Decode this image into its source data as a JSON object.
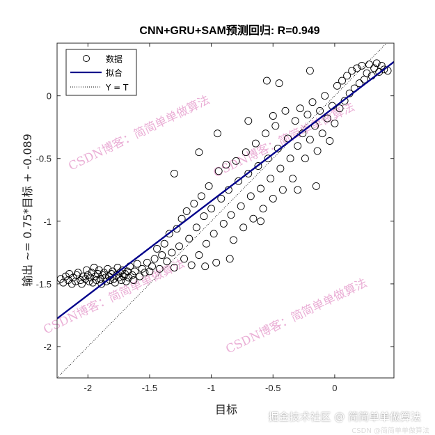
{
  "chart_data": {
    "type": "scatter",
    "title": "CNN+GRU+SAM预测回归: R=0.949",
    "xlabel": "目标",
    "ylabel": "输出 ~= 0.75*目标 + -0.089",
    "xlim": [
      -2.25,
      0.48
    ],
    "ylim": [
      -2.25,
      0.42
    ],
    "xticks": [
      -2,
      -1.5,
      -1,
      -0.5,
      0
    ],
    "xtick_labels": [
      "-2",
      "-1.5",
      "-1",
      "-0.5",
      "0"
    ],
    "yticks": [
      -2,
      -1.5,
      -1,
      -0.5,
      0
    ],
    "ytick_labels": [
      "-2",
      "-1.5",
      "-1",
      "-0.5",
      "0"
    ],
    "grid": false,
    "legend": {
      "placement": "top-left",
      "entries": [
        "数据",
        "拟合",
        "Y = T"
      ]
    },
    "fit": {
      "slope": 0.75,
      "intercept": -0.089,
      "color": "#00008b"
    },
    "identity_line": {
      "style": "dotted",
      "color": "#000000"
    },
    "series": [
      {
        "name": "数据",
        "marker": "open-circle",
        "points": [
          [
            -2.22,
            -1.46
          ],
          [
            -2.2,
            -1.49
          ],
          [
            -2.18,
            -1.44
          ],
          [
            -2.16,
            -1.47
          ],
          [
            -2.15,
            -1.42
          ],
          [
            -2.13,
            -1.5
          ],
          [
            -2.12,
            -1.45
          ],
          [
            -2.1,
            -1.48
          ],
          [
            -2.09,
            -1.43
          ],
          [
            -2.08,
            -1.41
          ],
          [
            -2.06,
            -1.47
          ],
          [
            -2.05,
            -1.5
          ],
          [
            -2.04,
            -1.44
          ],
          [
            -2.02,
            -1.46
          ],
          [
            -2.01,
            -1.39
          ],
          [
            -2.0,
            -1.43
          ],
          [
            -1.99,
            -1.48
          ],
          [
            -1.98,
            -1.45
          ],
          [
            -1.97,
            -1.41
          ],
          [
            -1.96,
            -1.49
          ],
          [
            -1.95,
            -1.37
          ],
          [
            -1.94,
            -1.44
          ],
          [
            -1.93,
            -1.47
          ],
          [
            -1.92,
            -1.42
          ],
          [
            -1.91,
            -1.39
          ],
          [
            -1.9,
            -1.46
          ],
          [
            -1.89,
            -1.5
          ],
          [
            -1.88,
            -1.43
          ],
          [
            -1.87,
            -1.41
          ],
          [
            -1.86,
            -1.45
          ],
          [
            -1.85,
            -1.48
          ],
          [
            -1.84,
            -1.38
          ],
          [
            -1.83,
            -1.44
          ],
          [
            -1.82,
            -1.47
          ],
          [
            -1.81,
            -1.42
          ],
          [
            -1.8,
            -1.4
          ],
          [
            -1.79,
            -1.46
          ],
          [
            -1.78,
            -1.49
          ],
          [
            -1.77,
            -1.43
          ],
          [
            -1.76,
            -1.37
          ],
          [
            -1.75,
            -1.45
          ],
          [
            -1.74,
            -1.41
          ],
          [
            -1.73,
            -1.47
          ],
          [
            -1.72,
            -1.39
          ],
          [
            -1.71,
            -1.44
          ],
          [
            -1.7,
            -1.42
          ],
          [
            -1.69,
            -1.48
          ],
          [
            -1.68,
            -1.4
          ],
          [
            -1.67,
            -1.45
          ],
          [
            -1.66,
            -1.36
          ],
          [
            -1.64,
            -1.43
          ],
          [
            -1.63,
            -1.47
          ],
          [
            -1.62,
            -1.4
          ],
          [
            -1.6,
            -1.34
          ],
          [
            -1.58,
            -1.44
          ],
          [
            -1.56,
            -1.38
          ],
          [
            -1.54,
            -1.41
          ],
          [
            -1.52,
            -1.33
          ],
          [
            -1.5,
            -1.4
          ],
          [
            -1.48,
            -1.36
          ],
          [
            -1.46,
            -1.3
          ],
          [
            -1.44,
            -1.22
          ],
          [
            -1.42,
            -1.38
          ],
          [
            -1.4,
            -1.27
          ],
          [
            -1.38,
            -1.18
          ],
          [
            -1.36,
            -1.32
          ],
          [
            -1.34,
            -1.1
          ],
          [
            -1.32,
            -1.25
          ],
          [
            -1.3,
            -1.37
          ],
          [
            -1.28,
            -1.06
          ],
          [
            -1.26,
            -1.2
          ],
          [
            -1.24,
            -0.98
          ],
          [
            -1.22,
            -1.3
          ],
          [
            -1.2,
            -0.92
          ],
          [
            -1.18,
            -1.14
          ],
          [
            -1.16,
            -1.35
          ],
          [
            -1.14,
            -0.86
          ],
          [
            -1.12,
            -1.05
          ],
          [
            -1.1,
            -1.27
          ],
          [
            -1.08,
            -0.8
          ],
          [
            -1.06,
            -0.96
          ],
          [
            -1.04,
            -1.18
          ],
          [
            -1.02,
            -0.72
          ],
          [
            -1.0,
            -0.9
          ],
          [
            -0.98,
            -1.1
          ],
          [
            -0.96,
            -1.33
          ],
          [
            -0.94,
            -0.6
          ],
          [
            -0.92,
            -0.82
          ],
          [
            -0.9,
            -1.02
          ],
          [
            -0.88,
            -0.55
          ],
          [
            -0.86,
            -0.75
          ],
          [
            -0.84,
            -0.95
          ],
          [
            -0.82,
            -1.15
          ],
          [
            -0.8,
            -0.52
          ],
          [
            -0.78,
            -0.68
          ],
          [
            -0.76,
            -0.88
          ],
          [
            -0.74,
            -1.05
          ],
          [
            -0.72,
            -0.45
          ],
          [
            -0.7,
            -0.62
          ],
          [
            -0.68,
            -0.8
          ],
          [
            -0.66,
            -0.98
          ],
          [
            -0.64,
            -0.38
          ],
          [
            -0.62,
            -0.56
          ],
          [
            -0.6,
            -0.74
          ],
          [
            -0.58,
            -0.9
          ],
          [
            -0.56,
            -0.3
          ],
          [
            -0.54,
            -0.5
          ],
          [
            -0.52,
            -0.66
          ],
          [
            -0.5,
            -0.82
          ],
          [
            -0.48,
            -0.24
          ],
          [
            -0.46,
            -0.42
          ],
          [
            -0.44,
            -0.58
          ],
          [
            -0.42,
            -0.75
          ],
          [
            -0.4,
            -0.12
          ],
          [
            -0.38,
            -0.34
          ],
          [
            -0.36,
            -0.5
          ],
          [
            -0.34,
            -0.66
          ],
          [
            -0.32,
            -0.2
          ],
          [
            -0.3,
            -0.4
          ],
          [
            -0.28,
            -0.1
          ],
          [
            -0.26,
            -0.3
          ],
          [
            -0.24,
            -0.5
          ],
          [
            -0.22,
            -0.15
          ],
          [
            -0.2,
            -0.35
          ],
          [
            -0.18,
            -0.05
          ],
          [
            -0.16,
            -0.24
          ],
          [
            -0.14,
            -0.44
          ],
          [
            -0.12,
            -0.12
          ],
          [
            -0.1,
            -0.3
          ],
          [
            -0.08,
            0.0
          ],
          [
            -0.06,
            -0.18
          ],
          [
            -0.04,
            -0.36
          ],
          [
            -0.02,
            -0.08
          ],
          [
            0.0,
            -0.22
          ],
          [
            0.02,
            0.08
          ],
          [
            0.04,
            -0.1
          ],
          [
            0.06,
            0.12
          ],
          [
            0.08,
            -0.04
          ],
          [
            0.1,
            0.16
          ],
          [
            0.12,
            0.02
          ],
          [
            0.14,
            0.2
          ],
          [
            0.16,
            0.06
          ],
          [
            0.18,
            0.22
          ],
          [
            0.2,
            0.1
          ],
          [
            0.22,
            0.24
          ],
          [
            0.24,
            0.13
          ],
          [
            0.26,
            0.18
          ],
          [
            0.28,
            0.25
          ],
          [
            0.3,
            0.16
          ],
          [
            0.32,
            0.22
          ],
          [
            0.34,
            0.26
          ],
          [
            0.36,
            0.19
          ],
          [
            0.38,
            0.24
          ],
          [
            0.4,
            0.21
          ],
          [
            0.43,
            0.2
          ],
          [
            -0.55,
            0.12
          ],
          [
            -0.45,
            0.1
          ],
          [
            -0.2,
            0.2
          ],
          [
            -1.1,
            -0.45
          ],
          [
            -0.95,
            -0.3
          ],
          [
            -0.7,
            -0.2
          ],
          [
            -0.5,
            -0.16
          ],
          [
            -0.85,
            -1.3
          ],
          [
            -1.05,
            -1.36
          ],
          [
            -0.6,
            -1.0
          ],
          [
            -0.3,
            -0.75
          ],
          [
            -1.3,
            -0.62
          ],
          [
            -0.15,
            -0.72
          ]
        ]
      }
    ]
  },
  "watermarks": [
    "CSDN博客：简简单单做算法",
    "CSDN博客：简简单单做算法",
    "CSDN博客：简简单单做算法",
    "CSDN博客：简简单单做算法"
  ],
  "credits": {
    "site": "掘金技术社区 @ 简简单单做算法",
    "csdn": "CSDN @简简单单做算法"
  }
}
